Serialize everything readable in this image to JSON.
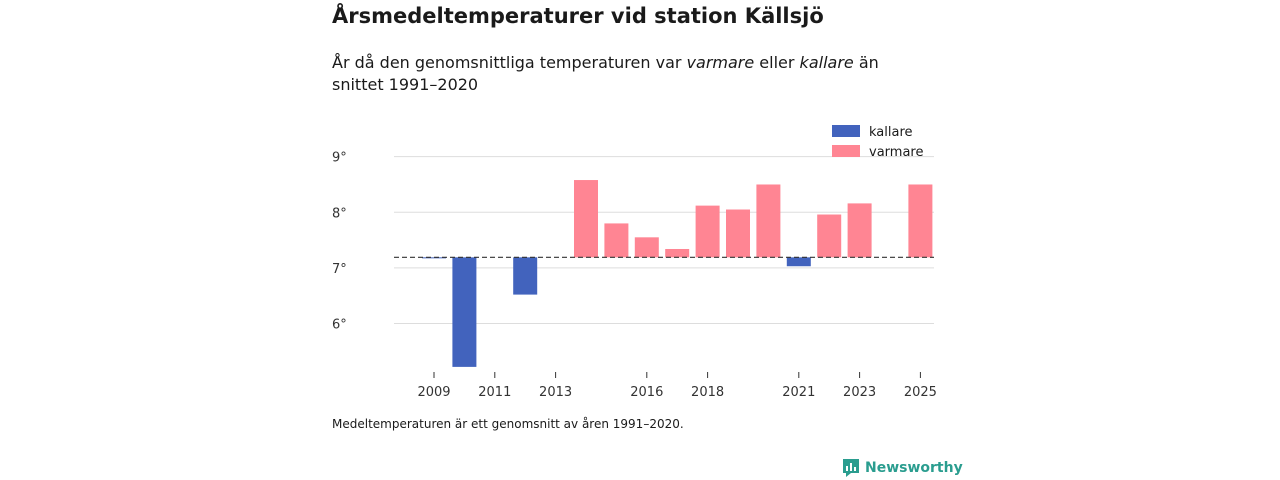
{
  "title": "Årsmedeltemperaturer vid station Källsjö",
  "subtitle": {
    "part1": "År då den genomsnittliga temperaturen var ",
    "em1": "varmare",
    "part2": " eller ",
    "em2": "kallare",
    "part3": " än snittet 1991–2020"
  },
  "footnote": "Medeltemperaturen är ett genomsnitt av åren 1991–2020.",
  "brand": "Newsworthy",
  "colors": {
    "kallare": "#4263bd",
    "varmare": "#ff8593",
    "baseline": "#333333",
    "grid": "#dddddd"
  },
  "chart_data": {
    "type": "bar",
    "title": "Årsmedeltemperaturer vid station Källsjö",
    "baseline": 7.19,
    "ylim": [
      5.2,
      9.3
    ],
    "yticks": [
      6,
      7,
      8,
      9
    ],
    "ytick_suffix": "°",
    "xticks": [
      2009,
      2011,
      2013,
      2016,
      2018,
      2021,
      2023,
      2025
    ],
    "legend": [
      {
        "key": "kallare",
        "label": "kallare"
      },
      {
        "key": "varmare",
        "label": "varmare"
      }
    ],
    "legend_position": "top-right",
    "bars": [
      {
        "year": 2009,
        "value": 7.18
      },
      {
        "year": 2010,
        "value": 5.22
      },
      {
        "year": 2012,
        "value": 6.52
      },
      {
        "year": 2014,
        "value": 8.58
      },
      {
        "year": 2015,
        "value": 7.8
      },
      {
        "year": 2016,
        "value": 7.55
      },
      {
        "year": 2017,
        "value": 7.34
      },
      {
        "year": 2018,
        "value": 8.12
      },
      {
        "year": 2019,
        "value": 8.05
      },
      {
        "year": 2020,
        "value": 8.5
      },
      {
        "year": 2021,
        "value": 7.03
      },
      {
        "year": 2022,
        "value": 7.96
      },
      {
        "year": 2023,
        "value": 8.16
      },
      {
        "year": 2025,
        "value": 8.5
      }
    ]
  }
}
